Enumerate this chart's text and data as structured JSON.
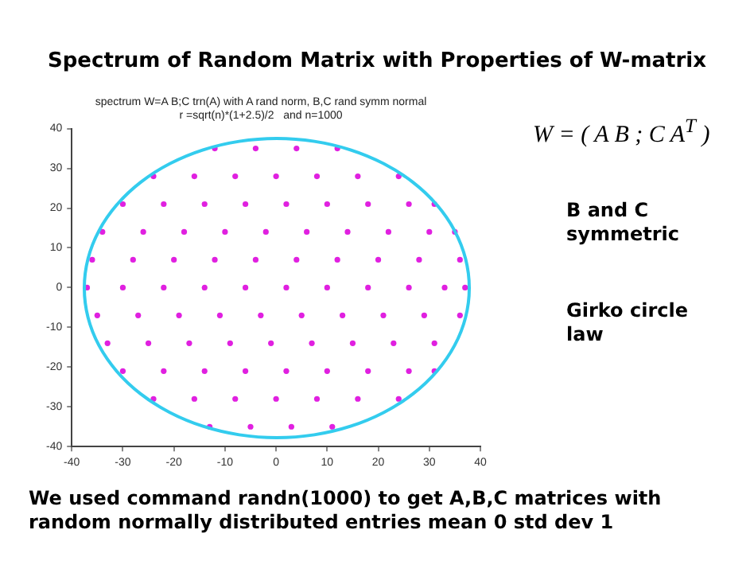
{
  "chart_data": {
    "type": "scatter",
    "title": "Spectrum of Random Matrix with Properties of W-matrix",
    "subtitle": "spectrum W=A B;C trn(A) with A rand norm, B,C rand symm normal\nr =sqrt(n)*(1+2.5)/2   and n=1000",
    "annotations": [
      "W = ( A  B ; C  A$^{T}$ )",
      "B and C symmetric",
      "Girko circle law",
      "We used command randn(1000)  to get A,B,C matrices with random normally distributed entries mean 0 std dev 1"
    ],
    "xlim": [
      -40,
      40
    ],
    "ylim": [
      -40,
      40
    ],
    "xticks": [
      -40,
      -30,
      -20,
      -10,
      0,
      10,
      20,
      30,
      40
    ],
    "yticks": [
      -40,
      -30,
      -20,
      -10,
      0,
      10,
      20,
      30,
      40
    ],
    "grid": false,
    "legend": false,
    "marker": "circle",
    "series": [
      {
        "type": "scatter",
        "color": "#e020e0",
        "x": [
          -12,
          -4,
          4,
          12,
          -24,
          -16,
          -8,
          0,
          8,
          16,
          24,
          -30,
          -22,
          -14,
          -6,
          2,
          10,
          18,
          26,
          31,
          -34,
          -26,
          -18,
          -10,
          -2,
          6,
          14,
          22,
          30,
          35,
          -36,
          -28,
          -20,
          -12,
          -4,
          4,
          12,
          20,
          28,
          36,
          -37,
          -30,
          -22,
          -14,
          -6,
          2,
          10,
          18,
          26,
          33,
          37,
          -35,
          -27,
          -19,
          -11,
          -3,
          5,
          13,
          21,
          29,
          36,
          -33,
          -25,
          -17,
          -9,
          -1,
          7,
          15,
          23,
          31,
          -30,
          -22,
          -14,
          -6,
          2,
          10,
          18,
          26,
          31,
          -24,
          -16,
          -8,
          0,
          8,
          16,
          24,
          -13,
          -5,
          3,
          11
        ],
        "values": [
          35,
          35,
          35,
          35,
          28,
          28,
          28,
          28,
          28,
          28,
          28,
          21,
          21,
          21,
          21,
          21,
          21,
          21,
          21,
          21,
          14,
          14,
          14,
          14,
          14,
          14,
          14,
          14,
          14,
          14,
          7,
          7,
          7,
          7,
          7,
          7,
          7,
          7,
          7,
          7,
          0,
          0,
          0,
          0,
          0,
          0,
          0,
          0,
          0,
          0,
          0,
          -7,
          -7,
          -7,
          -7,
          -7,
          -7,
          -7,
          -7,
          -7,
          -7,
          -14,
          -14,
          -14,
          -14,
          -14,
          -14,
          -14,
          -14,
          -14,
          -21,
          -21,
          -21,
          -21,
          -21,
          -21,
          -21,
          -21,
          -21,
          -28,
          -28,
          -28,
          -28,
          -28,
          -28,
          -28,
          -35,
          -35,
          -35,
          -35
        ]
      }
    ]
  }
}
